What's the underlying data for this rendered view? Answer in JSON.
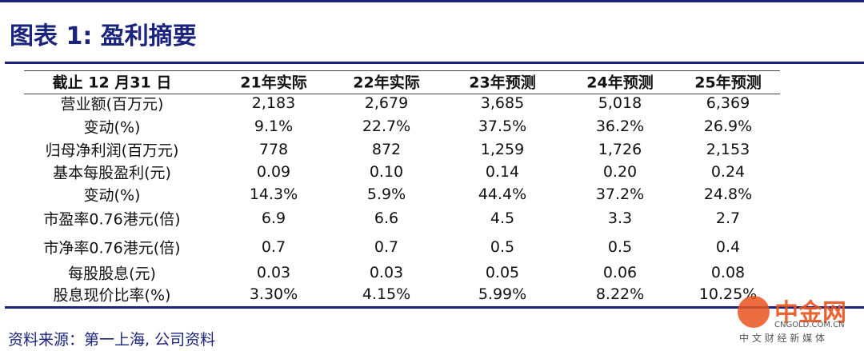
{
  "header": {
    "title": "图表 1:  盈利摘要"
  },
  "table": {
    "columns": [
      "截止 12 月31 日",
      "21年实际",
      "22年实际",
      "23年预测",
      "24年预测",
      "25年预测"
    ],
    "rows": [
      [
        "营业额(百万元)",
        "2,183",
        "2,679",
        "3,685",
        "5,018",
        "6,369"
      ],
      [
        "变动(%)",
        "9.1%",
        "22.7%",
        "37.5%",
        "36.2%",
        "26.9%"
      ],
      [
        "归母净利润(百万元)",
        "778",
        "872",
        "1,259",
        "1,726",
        "2,153"
      ],
      [
        "基本每股盈利(元)",
        "0.09",
        "0.10",
        "0.14",
        "0.20",
        "0.24"
      ],
      [
        "变动(%)",
        "14.3%",
        "5.9%",
        "44.4%",
        "37.2%",
        "24.8%"
      ],
      [
        "市盈率0.76港元(倍)",
        "6.9",
        "6.6",
        "4.5",
        "3.3",
        "2.7"
      ],
      [
        "市净率0.76港元(倍)",
        "0.7",
        "0.7",
        "0.5",
        "0.5",
        "0.4"
      ],
      [
        "每股股息(元)",
        "0.03",
        "0.03",
        "0.05",
        "0.06",
        "0.08"
      ],
      [
        "股息现价比率(%)",
        "3.30%",
        "4.15%",
        "5.99%",
        "8.22%",
        "10.25%"
      ]
    ]
  },
  "footer": {
    "source": "资料来源：第一上海, 公司资料"
  },
  "watermark": {
    "brand": "中金网",
    "url": "CNGOLD.COM.CN",
    "slogan": "中 文 财 经 新 媒 体"
  }
}
